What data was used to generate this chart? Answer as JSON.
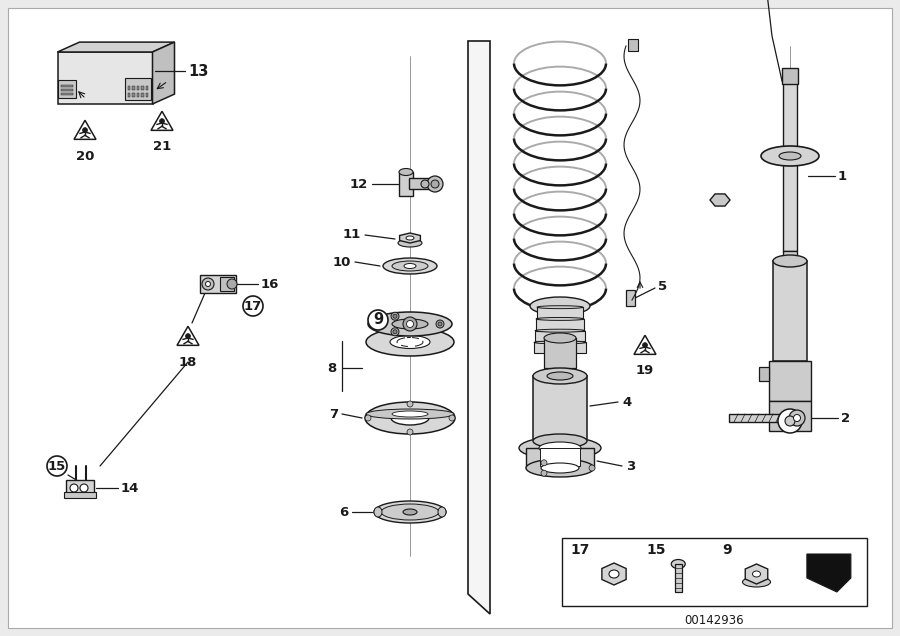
{
  "background_color": "#ebebeb",
  "diagram_bg": "#ffffff",
  "line_color": "#1a1a1a",
  "catalog_number": "00142936",
  "label_font_size": 9.5,
  "figsize": [
    9.0,
    6.36
  ],
  "dpi": 100
}
